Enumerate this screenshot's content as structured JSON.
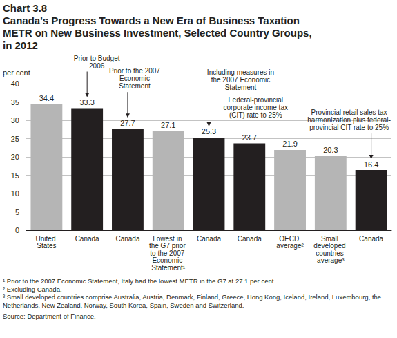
{
  "chart_data": {
    "type": "bar",
    "title": "Chart 3.8",
    "subtitle": "Canada's Progress Towards a New Era of Business Taxation\nMETR on New Business Investment, Selected Country Groups,\nin 2012",
    "y_label": "per cent",
    "categories": [
      "United States",
      "Canada",
      "Canada",
      "Lowest in the G7 prior to the 2007 Economic Statement¹",
      "Canada",
      "Canada",
      "OECD average²",
      "Small developed countries average³",
      "Canada"
    ],
    "values": [
      34.4,
      33.3,
      27.7,
      27.1,
      25.3,
      23.7,
      21.9,
      20.3,
      16.4
    ],
    "colors": [
      "#b5b5b5",
      "#231f20",
      "#231f20",
      "#b5b5b5",
      "#231f20",
      "#231f20",
      "#b5b5b5",
      "#b5b5b5",
      "#231f20"
    ],
    "annotations": [
      null,
      "Prior to Budget 2006",
      "Prior to the 2007 Economic Statement",
      null,
      "Including measures in the 2007 Economic Statement",
      "Federal-provincial corporate income tax (CIT) rate to 25%",
      null,
      null,
      "Provincial retail sales tax harmonization plus federal-provincial CIT rate to 25%"
    ],
    "data_labels": true,
    "ylim": [
      0,
      40
    ],
    "yticks": [
      0,
      5,
      10,
      15,
      20,
      25,
      30,
      35,
      40
    ],
    "grid": true,
    "footnotes": [
      "¹ Prior to the 2007 Economic Statement, Italy had the lowest METR in the G7 at 27.1 per cent.",
      "² Excluding Canada.",
      "³ Small developed countries comprise Australia, Austria, Denmark, Finland, Greece, Hong Kong, Iceland, Ireland, Luxembourg, the Netherlands, New Zealand, Norway, South Korea, Spain, Sweden and Switzerland."
    ],
    "source": "Source: Department of Finance."
  }
}
